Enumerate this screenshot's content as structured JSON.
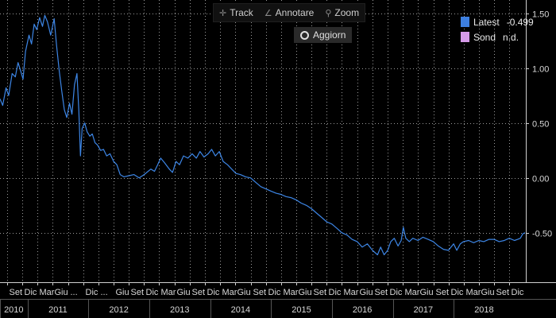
{
  "toolbar": {
    "track_label": "Track",
    "annotate_label": "Annotare",
    "zoom_label": "Zoom",
    "refresh_label": "Aggiorn"
  },
  "legend": [
    {
      "label": "Latest",
      "value": "-0.499",
      "color": "#3d7fe0"
    },
    {
      "label": "Sond",
      "value": "n.d.",
      "color": "#d59ae8"
    }
  ],
  "colors": {
    "background": "#000000",
    "line": "#3d86e6",
    "grid": "#9a9a9a",
    "text": "#d8d8d8"
  },
  "chart_data": {
    "type": "line",
    "title": "",
    "xlabel": "",
    "ylabel": "",
    "xlim": [
      "2010-07-20",
      "2019-03-10"
    ],
    "ylim": [
      -0.95,
      1.62
    ],
    "y_axis_side": "right",
    "grid": true,
    "legend_position": "top-right",
    "yticks": [
      {
        "value": 1.5,
        "label": "1.50"
      },
      {
        "value": 1.0,
        "label": "1.00"
      },
      {
        "value": 0.5,
        "label": "0.50"
      },
      {
        "value": 0.0,
        "label": "0.00"
      },
      {
        "value": -0.5,
        "label": "-0.50"
      }
    ],
    "month_ticks": [
      {
        "date": "2010-09-01",
        "label": "Set"
      },
      {
        "date": "2010-12-01",
        "label": "Dic"
      },
      {
        "date": "2011-03-01",
        "label": "Mar"
      },
      {
        "date": "2011-06-01",
        "label": "Giu"
      },
      {
        "date": "2011-09-01",
        "label": "..."
      },
      {
        "date": "2011-12-01",
        "label": "Dic"
      },
      {
        "date": "2012-03-01",
        "label": "..."
      },
      {
        "date": "2012-06-01",
        "label": "Giu"
      },
      {
        "date": "2012-09-01",
        "label": "Set"
      },
      {
        "date": "2012-12-01",
        "label": "Dic"
      },
      {
        "date": "2013-03-01",
        "label": "Mar"
      },
      {
        "date": "2013-06-01",
        "label": "Giu"
      },
      {
        "date": "2013-09-01",
        "label": "Set"
      },
      {
        "date": "2013-12-01",
        "label": "Dic"
      },
      {
        "date": "2014-03-01",
        "label": "Mar"
      },
      {
        "date": "2014-06-01",
        "label": "Giu"
      },
      {
        "date": "2014-09-01",
        "label": "Set"
      },
      {
        "date": "2014-12-01",
        "label": "Dic"
      },
      {
        "date": "2015-03-01",
        "label": "Mar"
      },
      {
        "date": "2015-06-01",
        "label": "Giu"
      },
      {
        "date": "2015-09-01",
        "label": "Set"
      },
      {
        "date": "2015-12-01",
        "label": "Dic"
      },
      {
        "date": "2016-03-01",
        "label": "Mar"
      },
      {
        "date": "2016-06-01",
        "label": "Giu"
      },
      {
        "date": "2016-09-01",
        "label": "Set"
      },
      {
        "date": "2016-12-01",
        "label": "Dic"
      },
      {
        "date": "2017-03-01",
        "label": "Mar"
      },
      {
        "date": "2017-06-01",
        "label": "Giu"
      },
      {
        "date": "2017-09-01",
        "label": "Set"
      },
      {
        "date": "2017-12-01",
        "label": "Dic"
      },
      {
        "date": "2018-03-01",
        "label": "Mar"
      },
      {
        "date": "2018-06-01",
        "label": "Giu"
      },
      {
        "date": "2018-09-01",
        "label": "Set"
      },
      {
        "date": "2018-12-01",
        "label": "Dic"
      }
    ],
    "year_labels": [
      {
        "year": "2010",
        "start": "2010-07-20",
        "end": "2011-01-01"
      },
      {
        "year": "2011",
        "start": "2011-01-01",
        "end": "2012-01-01"
      },
      {
        "year": "2012",
        "start": "2012-01-01",
        "end": "2013-01-01"
      },
      {
        "year": "2013",
        "start": "2013-01-01",
        "end": "2014-01-01"
      },
      {
        "year": "2014",
        "start": "2014-01-01",
        "end": "2015-01-01"
      },
      {
        "year": "2015",
        "start": "2015-01-01",
        "end": "2016-01-01"
      },
      {
        "year": "2016",
        "start": "2016-01-01",
        "end": "2017-01-01"
      },
      {
        "year": "2017",
        "start": "2017-01-01",
        "end": "2018-01-01"
      },
      {
        "year": "2018",
        "start": "2018-01-01",
        "end": "2019-01-01"
      }
    ],
    "series": [
      {
        "name": "Latest",
        "points": [
          [
            "2010-07-20",
            0.72
          ],
          [
            "2010-08-05",
            0.66
          ],
          [
            "2010-08-25",
            0.82
          ],
          [
            "2010-09-10",
            0.75
          ],
          [
            "2010-10-01",
            0.95
          ],
          [
            "2010-10-20",
            0.92
          ],
          [
            "2010-11-05",
            1.05
          ],
          [
            "2010-11-20",
            0.98
          ],
          [
            "2010-12-05",
            0.9
          ],
          [
            "2010-12-20",
            1.15
          ],
          [
            "2011-01-10",
            1.3
          ],
          [
            "2011-01-25",
            1.22
          ],
          [
            "2011-02-10",
            1.4
          ],
          [
            "2011-02-25",
            1.35
          ],
          [
            "2011-03-15",
            1.46
          ],
          [
            "2011-04-01",
            1.38
          ],
          [
            "2011-04-15",
            1.48
          ],
          [
            "2011-05-01",
            1.42
          ],
          [
            "2011-05-20",
            1.3
          ],
          [
            "2011-06-10",
            1.45
          ],
          [
            "2011-06-25",
            1.2
          ],
          [
            "2011-07-10",
            0.98
          ],
          [
            "2011-07-25",
            0.8
          ],
          [
            "2011-08-10",
            0.62
          ],
          [
            "2011-08-25",
            0.55
          ],
          [
            "2011-09-10",
            0.68
          ],
          [
            "2011-09-25",
            0.58
          ],
          [
            "2011-10-10",
            0.85
          ],
          [
            "2011-10-25",
            0.95
          ],
          [
            "2011-11-05",
            0.62
          ],
          [
            "2011-11-15",
            0.2
          ],
          [
            "2011-11-25",
            0.45
          ],
          [
            "2011-12-10",
            0.5
          ],
          [
            "2011-12-25",
            0.42
          ],
          [
            "2012-01-10",
            0.38
          ],
          [
            "2012-01-25",
            0.4
          ],
          [
            "2012-02-10",
            0.32
          ],
          [
            "2012-02-25",
            0.3
          ],
          [
            "2012-03-15",
            0.25
          ],
          [
            "2012-04-01",
            0.26
          ],
          [
            "2012-04-20",
            0.2
          ],
          [
            "2012-05-10",
            0.22
          ],
          [
            "2012-06-01",
            0.15
          ],
          [
            "2012-06-20",
            0.12
          ],
          [
            "2012-07-10",
            0.03
          ],
          [
            "2012-08-01",
            0.01
          ],
          [
            "2012-09-01",
            0.02
          ],
          [
            "2012-10-01",
            0.03
          ],
          [
            "2012-11-01",
            0.0
          ],
          [
            "2012-12-01",
            0.03
          ],
          [
            "2013-01-10",
            0.08
          ],
          [
            "2013-02-01",
            0.06
          ],
          [
            "2013-02-20",
            0.12
          ],
          [
            "2013-03-10",
            0.18
          ],
          [
            "2013-04-01",
            0.14
          ],
          [
            "2013-05-01",
            0.08
          ],
          [
            "2013-05-20",
            0.05
          ],
          [
            "2013-06-10",
            0.15
          ],
          [
            "2013-07-01",
            0.12
          ],
          [
            "2013-07-25",
            0.2
          ],
          [
            "2013-08-20",
            0.18
          ],
          [
            "2013-09-15",
            0.22
          ],
          [
            "2013-10-10",
            0.18
          ],
          [
            "2013-11-01",
            0.24
          ],
          [
            "2013-11-25",
            0.19
          ],
          [
            "2013-12-20",
            0.22
          ],
          [
            "2014-01-10",
            0.26
          ],
          [
            "2014-02-01",
            0.2
          ],
          [
            "2014-02-25",
            0.24
          ],
          [
            "2014-03-20",
            0.15
          ],
          [
            "2014-04-15",
            0.12
          ],
          [
            "2014-05-10",
            0.08
          ],
          [
            "2014-06-05",
            0.04
          ],
          [
            "2014-07-01",
            0.03
          ],
          [
            "2014-08-01",
            0.01
          ],
          [
            "2014-09-01",
            0.0
          ],
          [
            "2014-10-01",
            -0.04
          ],
          [
            "2014-11-01",
            -0.08
          ],
          [
            "2014-12-01",
            -0.1
          ],
          [
            "2015-01-01",
            -0.12
          ],
          [
            "2015-02-01",
            -0.14
          ],
          [
            "2015-03-01",
            -0.15
          ],
          [
            "2015-04-01",
            -0.17
          ],
          [
            "2015-05-01",
            -0.18
          ],
          [
            "2015-06-01",
            -0.2
          ],
          [
            "2015-07-01",
            -0.23
          ],
          [
            "2015-08-01",
            -0.25
          ],
          [
            "2015-09-01",
            -0.28
          ],
          [
            "2015-10-01",
            -0.32
          ],
          [
            "2015-11-01",
            -0.36
          ],
          [
            "2015-12-01",
            -0.4
          ],
          [
            "2016-01-01",
            -0.42
          ],
          [
            "2016-02-01",
            -0.46
          ],
          [
            "2016-03-01",
            -0.5
          ],
          [
            "2016-04-01",
            -0.52
          ],
          [
            "2016-05-01",
            -0.56
          ],
          [
            "2016-06-01",
            -0.58
          ],
          [
            "2016-07-01",
            -0.63
          ],
          [
            "2016-08-01",
            -0.6
          ],
          [
            "2016-09-01",
            -0.66
          ],
          [
            "2016-10-01",
            -0.7
          ],
          [
            "2016-10-20",
            -0.63
          ],
          [
            "2016-11-10",
            -0.7
          ],
          [
            "2016-12-01",
            -0.66
          ],
          [
            "2016-12-20",
            -0.58
          ],
          [
            "2017-01-10",
            -0.55
          ],
          [
            "2017-02-01",
            -0.62
          ],
          [
            "2017-02-20",
            -0.57
          ],
          [
            "2017-03-05",
            -0.45
          ],
          [
            "2017-03-20",
            -0.55
          ],
          [
            "2017-04-10",
            -0.58
          ],
          [
            "2017-05-01",
            -0.55
          ],
          [
            "2017-06-01",
            -0.57
          ],
          [
            "2017-07-01",
            -0.54
          ],
          [
            "2017-08-01",
            -0.56
          ],
          [
            "2017-09-01",
            -0.58
          ],
          [
            "2017-10-01",
            -0.62
          ],
          [
            "2017-11-01",
            -0.65
          ],
          [
            "2017-12-01",
            -0.66
          ],
          [
            "2018-01-01",
            -0.6
          ],
          [
            "2018-01-20",
            -0.66
          ],
          [
            "2018-02-10",
            -0.6
          ],
          [
            "2018-03-01",
            -0.58
          ],
          [
            "2018-04-01",
            -0.57
          ],
          [
            "2018-05-01",
            -0.59
          ],
          [
            "2018-06-01",
            -0.57
          ],
          [
            "2018-07-01",
            -0.58
          ],
          [
            "2018-08-01",
            -0.56
          ],
          [
            "2018-09-01",
            -0.56
          ],
          [
            "2018-10-01",
            -0.58
          ],
          [
            "2018-11-01",
            -0.57
          ],
          [
            "2018-12-01",
            -0.55
          ],
          [
            "2019-01-01",
            -0.57
          ],
          [
            "2019-01-20",
            -0.56
          ],
          [
            "2019-02-05",
            -0.55
          ],
          [
            "2019-02-20",
            -0.51
          ],
          [
            "2019-03-05",
            -0.499
          ]
        ]
      }
    ]
  }
}
